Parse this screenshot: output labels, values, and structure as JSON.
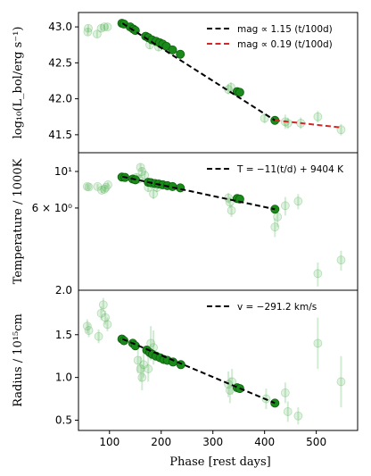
{
  "chart_data": {
    "type": "scatter",
    "x_axis": {
      "label": "Phase [rest days]",
      "range": [
        40,
        580
      ],
      "ticks": [
        100,
        200,
        300,
        400,
        500
      ],
      "tick_labels": [
        "100",
        "200",
        "300",
        "400",
        "500"
      ]
    },
    "colors": {
      "point": "#1a8a1a",
      "faint": "#4caf50",
      "black_line": "#000000",
      "red_line": "#d62728"
    },
    "panels": [
      {
        "id": "luminosity",
        "ylabel": "log₁₀(L_bol/erg s⁻¹)",
        "ylim": [
          41.25,
          43.2
        ],
        "ticks": [
          41.5,
          42.0,
          42.5,
          43.0
        ],
        "tick_labels": [
          "41.5",
          "42.0",
          "42.5",
          "43.0"
        ],
        "legend": [
          {
            "label": "mag ∝ 1.15 (t/100d)",
            "color": "#000000"
          },
          {
            "label": "mag ∝ 0.19 (t/100d)",
            "color": "#d62728"
          }
        ],
        "fits": [
          {
            "color": "#000000",
            "x": [
              125,
              420
            ],
            "y": [
              43.05,
              41.7
            ]
          },
          {
            "color": "#d62728",
            "x": [
              420,
              550
            ],
            "y": [
              41.7,
              41.6
            ]
          }
        ],
        "strong_points": [
          {
            "x": 124,
            "y": 43.05
          },
          {
            "x": 128,
            "y": 43.04
          },
          {
            "x": 140,
            "y": 43.0
          },
          {
            "x": 146,
            "y": 42.97
          },
          {
            "x": 150,
            "y": 42.95
          },
          {
            "x": 170,
            "y": 42.87
          },
          {
            "x": 175,
            "y": 42.85
          },
          {
            "x": 182,
            "y": 42.82
          },
          {
            "x": 190,
            "y": 42.8
          },
          {
            "x": 197,
            "y": 42.78
          },
          {
            "x": 203,
            "y": 42.76
          },
          {
            "x": 210,
            "y": 42.73
          },
          {
            "x": 222,
            "y": 42.68
          },
          {
            "x": 237,
            "y": 42.62
          },
          {
            "x": 347,
            "y": 42.1
          },
          {
            "x": 352,
            "y": 42.09
          },
          {
            "x": 420,
            "y": 41.7
          }
        ],
        "faint_points": [
          {
            "x": 58,
            "y": 42.93,
            "e": 0.05
          },
          {
            "x": 59,
            "y": 42.98,
            "e": 0.05
          },
          {
            "x": 76,
            "y": 42.9,
            "e": 0.05
          },
          {
            "x": 84,
            "y": 42.98,
            "e": 0.05
          },
          {
            "x": 90,
            "y": 43.0,
            "e": 0.04
          },
          {
            "x": 96,
            "y": 43.0,
            "e": 0.04
          },
          {
            "x": 178,
            "y": 42.75,
            "e": 0.06
          },
          {
            "x": 195,
            "y": 42.72,
            "e": 0.06
          },
          {
            "x": 330,
            "y": 42.13,
            "e": 0.07
          },
          {
            "x": 335,
            "y": 42.16,
            "e": 0.07
          },
          {
            "x": 400,
            "y": 41.73,
            "e": 0.07
          },
          {
            "x": 440,
            "y": 41.68,
            "e": 0.1
          },
          {
            "x": 445,
            "y": 41.66,
            "e": 0.08
          },
          {
            "x": 470,
            "y": 41.66,
            "e": 0.08
          },
          {
            "x": 503,
            "y": 41.75,
            "e": 0.08
          },
          {
            "x": 548,
            "y": 41.57,
            "e": 0.08
          }
        ]
      },
      {
        "id": "temperature",
        "ylabel": "Temperature / 1000K",
        "log_scale": true,
        "ylim": [
          1.9,
          13
        ],
        "ticks": [
          6,
          10
        ],
        "tick_labels": [
          "6 × 10⁰",
          "10¹"
        ],
        "bottom_tick_label": "2.0",
        "legend": [
          {
            "label": "T = −11(t/d) + 9404 K",
            "color": "#000000"
          }
        ],
        "fits": [
          {
            "color": "#000000",
            "x": [
              125,
              420
            ],
            "y": [
              9.3,
              5.9
            ]
          }
        ],
        "strong_points": [
          {
            "x": 124,
            "y": 9.25
          },
          {
            "x": 130,
            "y": 9.2
          },
          {
            "x": 145,
            "y": 9.0
          },
          {
            "x": 150,
            "y": 8.9
          },
          {
            "x": 175,
            "y": 8.6
          },
          {
            "x": 180,
            "y": 8.55
          },
          {
            "x": 188,
            "y": 8.45
          },
          {
            "x": 195,
            "y": 8.4
          },
          {
            "x": 203,
            "y": 8.3
          },
          {
            "x": 212,
            "y": 8.2
          },
          {
            "x": 222,
            "y": 8.1
          },
          {
            "x": 237,
            "y": 7.95
          },
          {
            "x": 347,
            "y": 6.85
          },
          {
            "x": 352,
            "y": 6.8
          },
          {
            "x": 420,
            "y": 5.9
          }
        ],
        "faint_points": [
          {
            "x": 57,
            "y": 8.1,
            "e": 0.3
          },
          {
            "x": 60,
            "y": 8.05,
            "e": 0.3
          },
          {
            "x": 77,
            "y": 8.1,
            "e": 0.3
          },
          {
            "x": 85,
            "y": 7.7,
            "e": 0.3
          },
          {
            "x": 90,
            "y": 7.8,
            "e": 0.3
          },
          {
            "x": 93,
            "y": 8.0,
            "e": 0.3
          },
          {
            "x": 97,
            "y": 8.3,
            "e": 0.3
          },
          {
            "x": 152,
            "y": 9.2,
            "e": 0.5
          },
          {
            "x": 157,
            "y": 9.0,
            "e": 0.5
          },
          {
            "x": 160,
            "y": 10.6,
            "e": 0.6
          },
          {
            "x": 163,
            "y": 10.0,
            "e": 0.6
          },
          {
            "x": 168,
            "y": 9.5,
            "e": 0.6
          },
          {
            "x": 175,
            "y": 8.0,
            "e": 0.5
          },
          {
            "x": 183,
            "y": 8.4,
            "e": 0.5
          },
          {
            "x": 185,
            "y": 7.3,
            "e": 0.5
          },
          {
            "x": 192,
            "y": 8.0,
            "e": 0.5
          },
          {
            "x": 330,
            "y": 6.9,
            "e": 0.5
          },
          {
            "x": 333,
            "y": 6.5,
            "e": 0.5
          },
          {
            "x": 336,
            "y": 5.8,
            "e": 0.5
          },
          {
            "x": 420,
            "y": 4.6,
            "e": 0.6
          },
          {
            "x": 425,
            "y": 5.3,
            "e": 0.7
          },
          {
            "x": 440,
            "y": 6.2,
            "e": 0.8
          },
          {
            "x": 465,
            "y": 6.6,
            "e": 0.7
          },
          {
            "x": 503,
            "y": 2.4,
            "e": 0.4
          },
          {
            "x": 548,
            "y": 2.9,
            "e": 0.4
          }
        ]
      },
      {
        "id": "radius",
        "ylabel": "Radius / 10¹⁵cm",
        "ylim": [
          0.38,
          2.02
        ],
        "ticks": [
          0.5,
          1.0,
          1.5
        ],
        "tick_labels": [
          "0.5",
          "1.0",
          "1.5"
        ],
        "legend": [
          {
            "label": "v = −291.2 km/s",
            "color": "#000000"
          }
        ],
        "fits": [
          {
            "color": "#000000",
            "x": [
              125,
              420
            ],
            "y": [
              1.45,
              0.7
            ]
          }
        ],
        "strong_points": [
          {
            "x": 124,
            "y": 1.45
          },
          {
            "x": 128,
            "y": 1.43
          },
          {
            "x": 145,
            "y": 1.4
          },
          {
            "x": 150,
            "y": 1.37
          },
          {
            "x": 172,
            "y": 1.32
          },
          {
            "x": 178,
            "y": 1.29
          },
          {
            "x": 183,
            "y": 1.27
          },
          {
            "x": 190,
            "y": 1.25
          },
          {
            "x": 198,
            "y": 1.23
          },
          {
            "x": 205,
            "y": 1.21
          },
          {
            "x": 212,
            "y": 1.2
          },
          {
            "x": 223,
            "y": 1.18
          },
          {
            "x": 238,
            "y": 1.15
          },
          {
            "x": 347,
            "y": 0.88
          },
          {
            "x": 352,
            "y": 0.87
          },
          {
            "x": 420,
            "y": 0.7
          }
        ],
        "faint_points": [
          {
            "x": 57,
            "y": 1.6,
            "e": 0.08
          },
          {
            "x": 60,
            "y": 1.55,
            "e": 0.08
          },
          {
            "x": 79,
            "y": 1.48,
            "e": 0.08
          },
          {
            "x": 84,
            "y": 1.75,
            "e": 0.08
          },
          {
            "x": 88,
            "y": 1.85,
            "e": 0.08
          },
          {
            "x": 92,
            "y": 1.7,
            "e": 0.08
          },
          {
            "x": 96,
            "y": 1.62,
            "e": 0.08
          },
          {
            "x": 155,
            "y": 1.2,
            "e": 0.15
          },
          {
            "x": 160,
            "y": 1.1,
            "e": 0.15
          },
          {
            "x": 163,
            "y": 1.0,
            "e": 0.15
          },
          {
            "x": 166,
            "y": 1.15,
            "e": 0.15
          },
          {
            "x": 175,
            "y": 1.1,
            "e": 0.15
          },
          {
            "x": 180,
            "y": 1.4,
            "e": 0.2
          },
          {
            "x": 185,
            "y": 1.35,
            "e": 0.2
          },
          {
            "x": 330,
            "y": 0.92,
            "e": 0.15
          },
          {
            "x": 333,
            "y": 0.85,
            "e": 0.15
          },
          {
            "x": 337,
            "y": 0.95,
            "e": 0.15
          },
          {
            "x": 403,
            "y": 0.75,
            "e": 0.12
          },
          {
            "x": 440,
            "y": 0.82,
            "e": 0.12
          },
          {
            "x": 445,
            "y": 0.6,
            "e": 0.12
          },
          {
            "x": 465,
            "y": 0.55,
            "e": 0.1
          },
          {
            "x": 503,
            "y": 1.4,
            "e": 0.3
          },
          {
            "x": 548,
            "y": 0.95,
            "e": 0.3
          }
        ]
      }
    ]
  }
}
